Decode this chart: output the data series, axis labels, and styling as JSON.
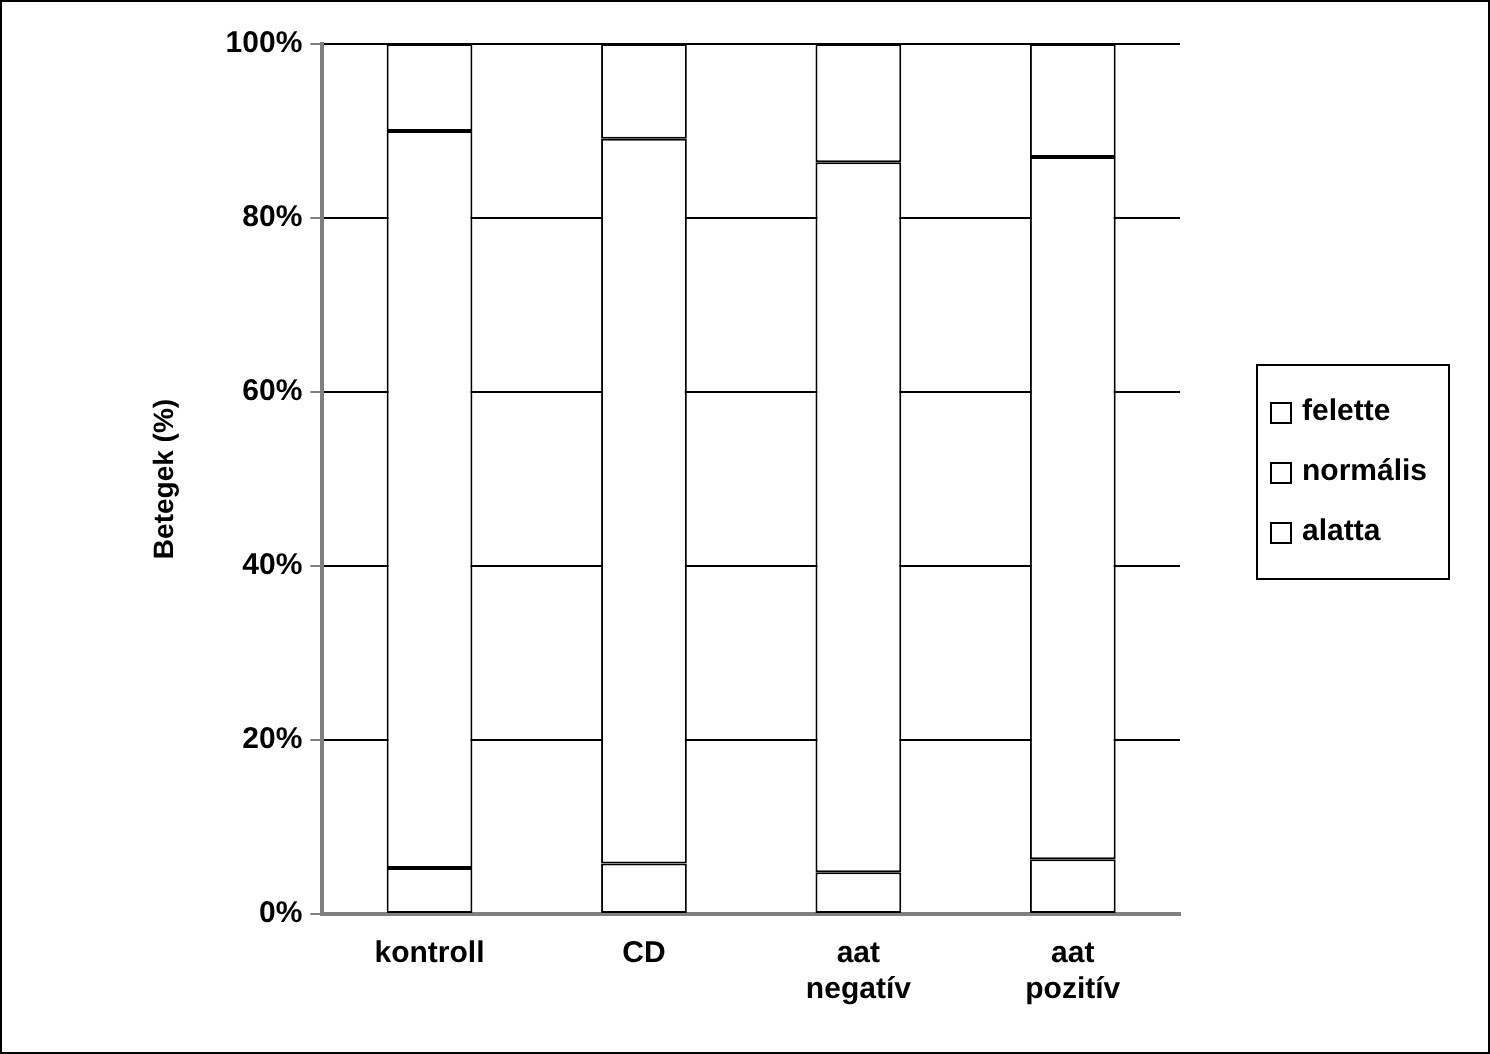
{
  "chart_data": {
    "type": "bar",
    "stacked": true,
    "ylabel": "Betegek (%)",
    "categories": [
      "kontroll",
      "CD",
      "aat negatív",
      "aat pozitív"
    ],
    "series": [
      {
        "name": "alatta",
        "color": "#ffffff",
        "values": [
          5.3,
          5.8,
          4.8,
          6.3
        ]
      },
      {
        "name": "normális",
        "color": "#ffffff",
        "values": [
          84.7,
          83.3,
          81.6,
          80.7
        ]
      },
      {
        "name": "felette",
        "color": "#ffffff",
        "values": [
          10.0,
          10.9,
          13.6,
          13.0
        ]
      }
    ],
    "ylim": [
      0,
      100
    ],
    "yticks": [
      {
        "value": 0,
        "label": "0%"
      },
      {
        "value": 20,
        "label": "20%"
      },
      {
        "value": 40,
        "label": "40%"
      },
      {
        "value": 60,
        "label": "60%"
      },
      {
        "value": 80,
        "label": "80%"
      },
      {
        "value": 100,
        "label": "100%"
      }
    ],
    "grid": "y",
    "legend": "right"
  }
}
